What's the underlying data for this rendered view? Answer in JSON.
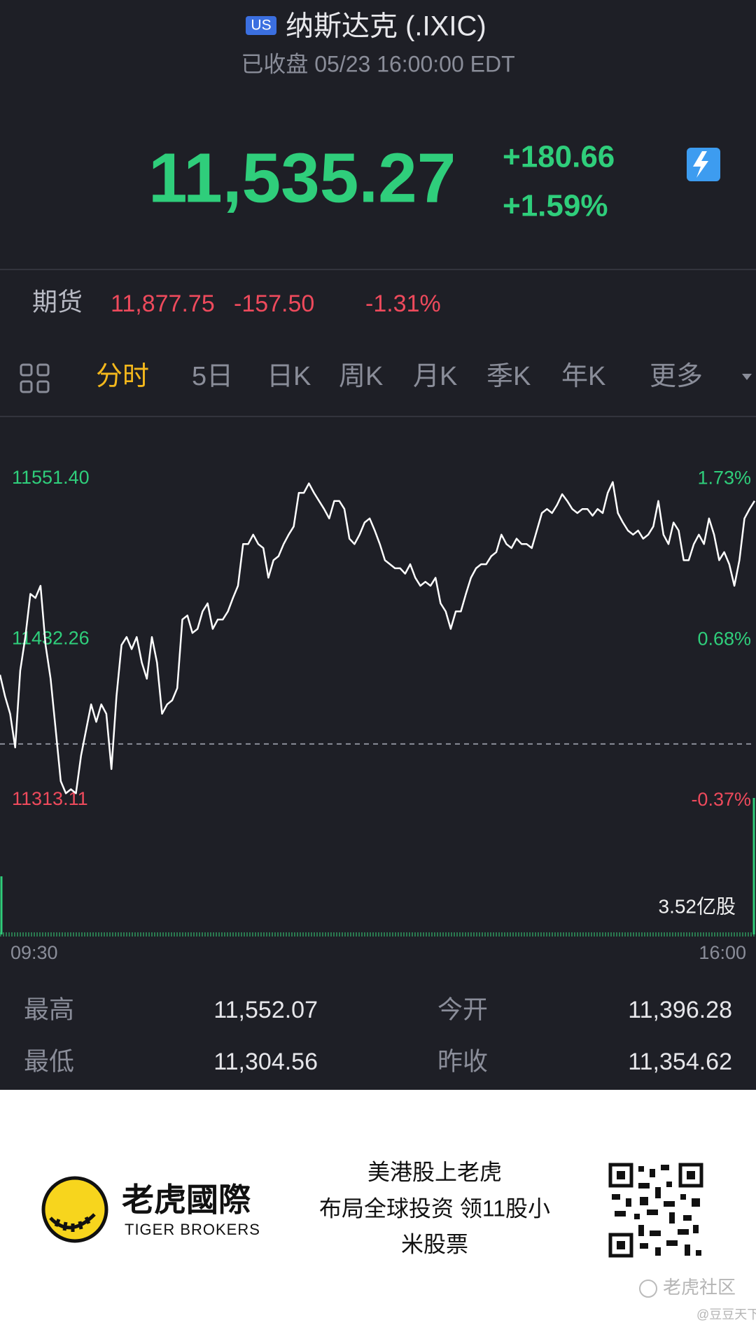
{
  "header": {
    "market_badge": "US",
    "title": "纳斯达克 (.IXIC)",
    "status": "已收盘 05/23 16:00:00 EDT",
    "price": "11,535.27",
    "change": "+180.66",
    "change_pct": "+1.59%"
  },
  "futures": {
    "label": "期货",
    "price": "11,877.75",
    "change": "-157.50",
    "change_pct": "-1.31%"
  },
  "tabs": [
    "分时",
    "5日",
    "日K",
    "周K",
    "月K",
    "季K",
    "年K",
    "更多"
  ],
  "chart_data": {
    "type": "line",
    "color": "#ffffff",
    "up_color": "#2fce7b",
    "down_color": "#ee4a5c",
    "values": [
      11406,
      11390,
      11377,
      11352,
      11409,
      11434,
      11466,
      11463,
      11472,
      11428,
      11403,
      11365,
      11327,
      11318,
      11321,
      11318,
      11346,
      11365,
      11384,
      11371,
      11384,
      11377,
      11336,
      11390,
      11428,
      11434,
      11425,
      11434,
      11415,
      11403,
      11434,
      11415,
      11377,
      11384,
      11387,
      11396,
      11447,
      11450,
      11437,
      11440,
      11453,
      11459,
      11440,
      11447,
      11447,
      11453,
      11463,
      11472,
      11503,
      11503,
      11510,
      11503,
      11500,
      11478,
      11491,
      11494,
      11503,
      11510,
      11516,
      11541,
      11541,
      11548,
      11541,
      11535,
      11529,
      11522,
      11535,
      11535,
      11529,
      11507,
      11503,
      11510,
      11519,
      11522,
      11513,
      11503,
      11491,
      11488,
      11485,
      11485,
      11481,
      11488,
      11478,
      11472,
      11475,
      11472,
      11478,
      11459,
      11453,
      11440,
      11453,
      11453,
      11466,
      11478,
      11485,
      11488,
      11488,
      11494,
      11497,
      11510,
      11503,
      11500,
      11507,
      11503,
      11503,
      11500,
      11513,
      11526,
      11529,
      11526,
      11532,
      11540,
      11535,
      11529,
      11526,
      11529,
      11529,
      11524,
      11529,
      11526,
      11541,
      11549,
      11526,
      11519,
      11513,
      11510,
      11513,
      11507,
      11510,
      11516,
      11535,
      11510,
      11503,
      11519,
      11513,
      11491,
      11491,
      11503,
      11510,
      11503,
      11522,
      11510,
      11491,
      11497,
      11488,
      11472,
      11491,
      11522,
      11529,
      11535
    ],
    "ylim": [
      11300,
      11566
    ],
    "yticks": [
      {
        "value": 11551.4,
        "label": "11551.40"
      },
      11432.26,
      11313.11
    ],
    "y2lim": [
      -0.48,
      1.86
    ],
    "y2ticks": [
      {
        "value": 1.73,
        "label": "1.73%"
      },
      {
        "value": 0.68,
        "label": "0.68%"
      },
      {
        "value": -0.37,
        "label": "-0.37%"
      }
    ],
    "x_labels": [
      "09:30",
      "16:00"
    ],
    "volume_label": "3.52亿股"
  },
  "stats": [
    {
      "name": "最高",
      "value": 11552.07,
      "text": "11,552.07"
    },
    {
      "name": "今开",
      "value": 11396.28,
      "text": "11,396.28"
    },
    {
      "name": "最低",
      "value": 11304.56,
      "text": "11,304.56"
    },
    {
      "name": "昨收",
      "value": 11354.62,
      "text": "11,354.62"
    }
  ],
  "ad": {
    "brand": "老虎國際",
    "brand_en": "TIGER BROKERS",
    "slogan": [
      "美港股上老虎",
      "布局全球投资 领11股小",
      "米股票"
    ],
    "watermark": "老虎社区",
    "author": "@豆豆天下"
  }
}
